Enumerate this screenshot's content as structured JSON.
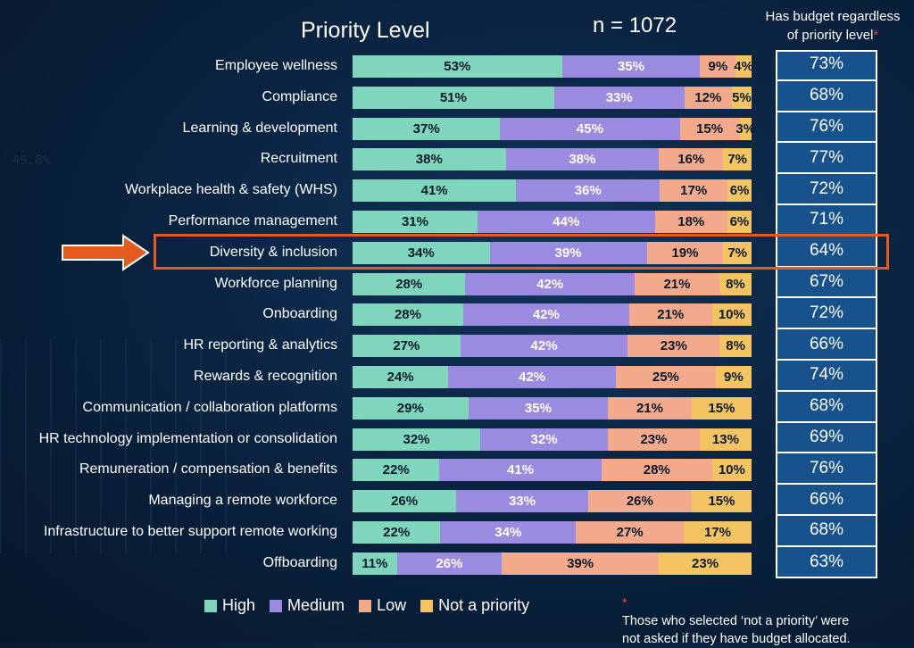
{
  "chart_data": {
    "type": "bar",
    "orientation": "horizontal-stacked-100",
    "title": "Priority Level",
    "sample_size": "n = 1072",
    "budget_header_line1": "Has budget regardless",
    "budget_header_line2": "of priority level",
    "asterisk": "*",
    "categories": [
      "Employee wellness",
      "Compliance",
      "Learning & development",
      "Recruitment",
      "Workplace health & safety (WHS)",
      "Performance management",
      "Diversity & inclusion",
      "Workforce planning",
      "Onboarding",
      "HR reporting & analytics",
      "Rewards & recognition",
      "Communication / collaboration platforms",
      "HR technology implementation or consolidation",
      "Remuneration / compensation & benefits",
      "Managing a remote workforce",
      "Infrastructure to better support remote working",
      "Offboarding"
    ],
    "series": [
      {
        "name": "High",
        "color": "#7fd6bd",
        "values": [
          53,
          51,
          37,
          38,
          41,
          31,
          34,
          28,
          28,
          27,
          24,
          29,
          32,
          22,
          26,
          22,
          11
        ]
      },
      {
        "name": "Medium",
        "color": "#9b8be0",
        "values": [
          35,
          33,
          45,
          38,
          36,
          44,
          39,
          42,
          42,
          42,
          42,
          35,
          32,
          41,
          33,
          34,
          26
        ]
      },
      {
        "name": "Low",
        "color": "#f2a98c",
        "values": [
          9,
          12,
          15,
          16,
          17,
          18,
          19,
          21,
          21,
          23,
          25,
          21,
          23,
          28,
          26,
          27,
          39
        ]
      },
      {
        "name": "Not a priority",
        "color": "#f4c463",
        "values": [
          4,
          5,
          3,
          7,
          6,
          6,
          7,
          8,
          10,
          8,
          9,
          15,
          13,
          10,
          15,
          17,
          23
        ]
      }
    ],
    "budget_values": [
      "73%",
      "68%",
      "76%",
      "77%",
      "72%",
      "71%",
      "64%",
      "67%",
      "72%",
      "66%",
      "74%",
      "68%",
      "69%",
      "76%",
      "66%",
      "68%",
      "63%"
    ],
    "highlighted_category": "Diversity & inclusion",
    "legend": [
      "High",
      "Medium",
      "Low",
      "Not a priority"
    ],
    "footnote_line1": "Those who selected ‘not a priority’ were",
    "footnote_line2": "not asked if they have budget allocated."
  },
  "colors": {
    "budget_fill": "#17528c",
    "highlight": "#e55a1f"
  }
}
